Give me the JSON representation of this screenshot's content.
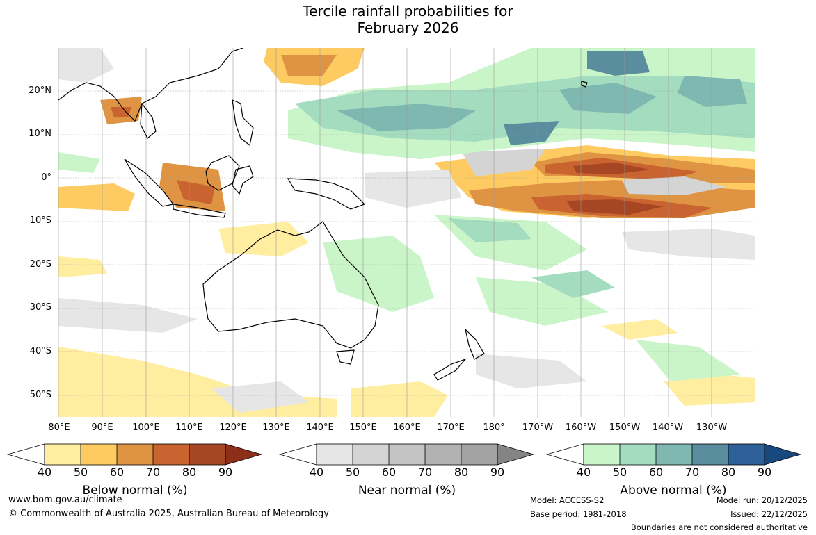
{
  "title_line1": "Tercile rainfall probabilities for",
  "title_line2": "February 2026",
  "lat_labels": [
    "20°N",
    "10°N",
    "0°",
    "10°S",
    "20°S",
    "30°S",
    "40°S",
    "50°S"
  ],
  "lon_labels": [
    "80°E",
    "90°E",
    "100°E",
    "110°E",
    "120°E",
    "130°E",
    "140°E",
    "150°E",
    "160°E",
    "170°E",
    "180°",
    "170°W",
    "160°W",
    "150°W",
    "140°W",
    "130°W"
  ],
  "colorbars": [
    {
      "name": "below",
      "title": "Below normal (%)",
      "ticks": [
        "40",
        "50",
        "60",
        "70",
        "80",
        "90"
      ],
      "colors": [
        "#ffeda0",
        "#fecb62",
        "#de9442",
        "#c9632f",
        "#a64622",
        "#8b2f18"
      ]
    },
    {
      "name": "near",
      "title": "Near normal (%)",
      "ticks": [
        "40",
        "50",
        "60",
        "70",
        "80",
        "90"
      ],
      "colors": [
        "#e6e6e6",
        "#d4d4d4",
        "#c4c4c4",
        "#b2b2b2",
        "#a2a2a2",
        "#848484"
      ]
    },
    {
      "name": "above",
      "title": "Above normal (%)",
      "ticks": [
        "40",
        "50",
        "60",
        "70",
        "80",
        "90"
      ],
      "colors": [
        "#c9f5c8",
        "#a4dcc0",
        "#7fb8b0",
        "#5a8e9e",
        "#2e6099",
        "#17497f"
      ]
    }
  ],
  "footer": {
    "website": "www.bom.gov.au/climate",
    "copyright": "© Commonwealth of Australia 2025, Australian Bureau of Meteorology",
    "model": "Model: ACCESS-S2",
    "base_period": "Base period: 1981-2018",
    "model_run": "Model run: 20/12/2025",
    "issued": "Issued: 22/12/2025",
    "disclaimer": "Boundaries are not considered authoritative"
  }
}
